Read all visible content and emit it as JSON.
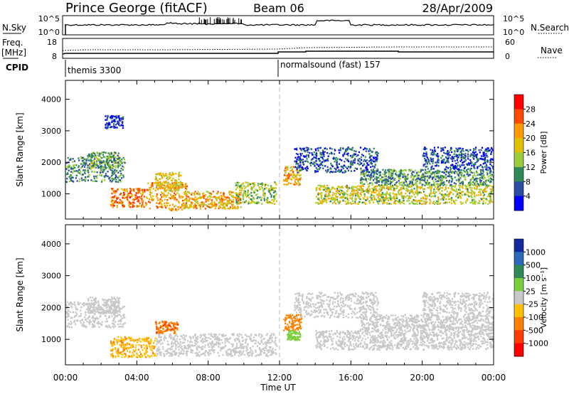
{
  "header": {
    "station": "Prince George (fitACF)",
    "beam": "Beam 06",
    "date": "28/Apr/2009"
  },
  "noise_panel": {
    "left_label": "N.Sky",
    "right_label": "N.Search",
    "left_ticks": [
      "10^5",
      "10^0"
    ],
    "right_ticks": [
      "10^5",
      "10^0"
    ]
  },
  "freq_panel": {
    "left_label_1": "Freq.",
    "left_label_2": "[MHz]",
    "right_label": "Nave",
    "left_ticks": [
      "18",
      "8"
    ],
    "right_ticks": [
      "60",
      "0"
    ]
  },
  "cpid": {
    "label": "CPID",
    "segments": [
      {
        "name": "themis 3300",
        "start_hour": 0
      },
      {
        "name": "normalsound (fast) 157",
        "start_hour": 12
      }
    ]
  },
  "chart_data": [
    {
      "type": "heatmap",
      "panel": "power",
      "ylabel": "Slant Range [km]",
      "xlabel": "Time UT",
      "xlim": [
        0,
        24
      ],
      "ylim": [
        200,
        4600
      ],
      "x_ticks": [
        "00:00",
        "04:00",
        "08:00",
        "12:00",
        "16:00",
        "20:00",
        "00:00"
      ],
      "y_ticks": [
        1000,
        2000,
        3000,
        4000
      ],
      "colorbar": {
        "label": "Power [dB]",
        "ticks": [
          "28",
          "24",
          "20",
          "16",
          "12",
          "8",
          "4"
        ],
        "colors": [
          "#ff0000",
          "#ff4a00",
          "#ff9a00",
          "#e0c000",
          "#9ccc3c",
          "#2e8b57",
          "#2a4ea0",
          "#0000ff"
        ]
      },
      "regions": [
        {
          "t0": 0.0,
          "t1": 3.3,
          "r0": 1400,
          "r1": 2200,
          "level": 12
        },
        {
          "t0": 1.2,
          "t1": 3.0,
          "r0": 1850,
          "r1": 2350,
          "level": 14
        },
        {
          "t0": 2.5,
          "t1": 4.5,
          "r0": 600,
          "r1": 1200,
          "level": 26
        },
        {
          "t0": 4.5,
          "t1": 6.8,
          "r0": 500,
          "r1": 1400,
          "level": 24
        },
        {
          "t0": 5.0,
          "t1": 6.5,
          "r0": 1100,
          "r1": 1700,
          "level": 20
        },
        {
          "t0": 6.5,
          "t1": 9.8,
          "r0": 550,
          "r1": 1100,
          "level": 22
        },
        {
          "t0": 9.5,
          "t1": 11.8,
          "r0": 700,
          "r1": 1400,
          "level": 16
        },
        {
          "t0": 12.2,
          "t1": 13.2,
          "r0": 1300,
          "r1": 1900,
          "level": 22
        },
        {
          "t0": 12.8,
          "t1": 17.5,
          "r0": 1700,
          "r1": 2500,
          "level": 8
        },
        {
          "t0": 14.0,
          "t1": 24.0,
          "r0": 700,
          "r1": 1300,
          "level": 18
        },
        {
          "t0": 16.5,
          "t1": 24.0,
          "r0": 1300,
          "r1": 1800,
          "level": 12
        },
        {
          "t0": 20.0,
          "t1": 24.0,
          "r0": 1800,
          "r1": 2500,
          "level": 8
        },
        {
          "t0": 2.2,
          "t1": 3.2,
          "r0": 3100,
          "r1": 3500,
          "level": 6
        }
      ]
    },
    {
      "type": "heatmap",
      "panel": "velocity",
      "ylabel": "Slant Range [km]",
      "xlabel": "Time UT",
      "xlim": [
        0,
        24
      ],
      "ylim": [
        200,
        4600
      ],
      "x_ticks": [
        "00:00",
        "04:00",
        "08:00",
        "12:00",
        "16:00",
        "20:00",
        "00:00"
      ],
      "y_ticks": [
        1000,
        2000,
        3000,
        4000
      ],
      "colorbar": {
        "label": "Velocity [m s⁻¹]",
        "ticks": [
          "1000",
          "500",
          "100",
          "25",
          "-25",
          "-100",
          "-500",
          "-1000"
        ],
        "colors": [
          "#1428a0",
          "#2a6ab8",
          "#2e8b57",
          "#7ccf3c",
          "#c8c8c8",
          "#ffc000",
          "#ff7f00",
          "#ff3c00",
          "#ff0000"
        ]
      },
      "regions": [
        {
          "t0": 0.0,
          "t1": 3.3,
          "r0": 1400,
          "r1": 2200,
          "level": 0
        },
        {
          "t0": 1.2,
          "t1": 3.0,
          "r0": 1850,
          "r1": 2350,
          "level": 0
        },
        {
          "t0": 2.5,
          "t1": 5.0,
          "r0": 450,
          "r1": 1100,
          "level": -80
        },
        {
          "t0": 5.0,
          "t1": 6.3,
          "r0": 1200,
          "r1": 1600,
          "level": -400
        },
        {
          "t0": 5.0,
          "t1": 11.8,
          "r0": 500,
          "r1": 1200,
          "level": 0
        },
        {
          "t0": 12.2,
          "t1": 13.2,
          "r0": 1300,
          "r1": 1800,
          "level": -300
        },
        {
          "t0": 12.4,
          "t1": 13.2,
          "r0": 1000,
          "r1": 1300,
          "level": 60
        },
        {
          "t0": 12.8,
          "t1": 17.5,
          "r0": 1700,
          "r1": 2500,
          "level": 0
        },
        {
          "t0": 14.0,
          "t1": 24.0,
          "r0": 700,
          "r1": 1300,
          "level": 0
        },
        {
          "t0": 16.5,
          "t1": 24.0,
          "r0": 1300,
          "r1": 1800,
          "level": 0
        },
        {
          "t0": 20.0,
          "t1": 24.0,
          "r0": 1800,
          "r1": 2500,
          "level": 0
        }
      ]
    }
  ]
}
